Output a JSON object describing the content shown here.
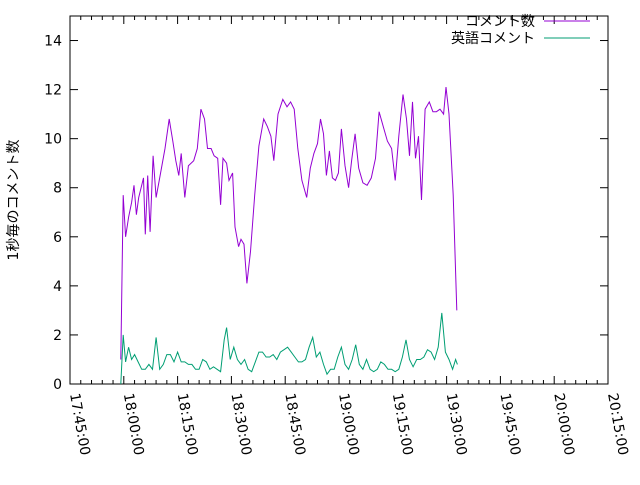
{
  "chart_data": {
    "type": "line",
    "title": "",
    "xlabel": "",
    "ylabel": "1秒毎のコメント数",
    "xlim": [
      "17:45:00",
      "20:15:00"
    ],
    "ylim": [
      0,
      15
    ],
    "grid": false,
    "legend_position": "top-right",
    "x_ticks": [
      "17:45:00",
      "18:00:00",
      "18:15:00",
      "18:30:00",
      "18:45:00",
      "19:00:00",
      "19:15:00",
      "19:30:00",
      "19:45:00",
      "20:00:00",
      "20:15:00"
    ],
    "y_ticks": [
      0,
      2,
      4,
      6,
      8,
      10,
      12,
      14
    ],
    "series": [
      {
        "name": "コメント数",
        "color": "#9400d3",
        "points": [
          [
            "17:59:10",
            1.0
          ],
          [
            "17:59:50",
            7.7
          ],
          [
            "18:00:30",
            6.0
          ],
          [
            "18:01:20",
            6.8
          ],
          [
            "18:02:10",
            7.4
          ],
          [
            "18:02:50",
            8.1
          ],
          [
            "18:03:30",
            6.9
          ],
          [
            "18:04:10",
            7.6
          ],
          [
            "18:04:50",
            8.0
          ],
          [
            "18:05:30",
            8.4
          ],
          [
            "18:06:00",
            6.1
          ],
          [
            "18:06:40",
            8.5
          ],
          [
            "18:07:20",
            6.2
          ],
          [
            "18:08:10",
            9.3
          ],
          [
            "18:09:00",
            7.6
          ],
          [
            "18:10:00",
            8.4
          ],
          [
            "18:11:30",
            9.6
          ],
          [
            "18:12:40",
            10.8
          ],
          [
            "18:13:40",
            9.9
          ],
          [
            "18:14:30",
            9.1
          ],
          [
            "18:15:20",
            8.5
          ],
          [
            "18:16:00",
            9.4
          ],
          [
            "18:17:00",
            7.6
          ],
          [
            "18:18:00",
            8.9
          ],
          [
            "18:19:30",
            9.1
          ],
          [
            "18:20:30",
            9.6
          ],
          [
            "18:21:30",
            11.2
          ],
          [
            "18:22:30",
            10.8
          ],
          [
            "18:23:20",
            9.6
          ],
          [
            "18:24:20",
            9.6
          ],
          [
            "18:25:10",
            9.3
          ],
          [
            "18:26:10",
            9.2
          ],
          [
            "18:27:00",
            7.3
          ],
          [
            "18:27:40",
            9.2
          ],
          [
            "18:28:40",
            9.0
          ],
          [
            "18:29:20",
            8.3
          ],
          [
            "18:30:20",
            8.6
          ],
          [
            "18:31:00",
            6.4
          ],
          [
            "18:32:00",
            5.6
          ],
          [
            "18:32:40",
            5.9
          ],
          [
            "18:33:30",
            5.7
          ],
          [
            "18:34:20",
            4.1
          ],
          [
            "18:35:20",
            5.4
          ],
          [
            "18:36:30",
            7.7
          ],
          [
            "18:37:40",
            9.7
          ],
          [
            "18:39:00",
            10.8
          ],
          [
            "18:40:00",
            10.5
          ],
          [
            "18:41:00",
            10.1
          ],
          [
            "18:41:50",
            9.1
          ],
          [
            "18:43:00",
            11.0
          ],
          [
            "18:44:20",
            11.6
          ],
          [
            "18:45:30",
            11.3
          ],
          [
            "18:46:30",
            11.5
          ],
          [
            "18:47:30",
            11.2
          ],
          [
            "18:48:30",
            9.6
          ],
          [
            "18:49:40",
            8.3
          ],
          [
            "18:51:00",
            7.6
          ],
          [
            "18:52:00",
            8.8
          ],
          [
            "18:53:00",
            9.4
          ],
          [
            "18:54:00",
            9.8
          ],
          [
            "18:54:50",
            10.8
          ],
          [
            "18:55:40",
            10.2
          ],
          [
            "18:56:30",
            8.5
          ],
          [
            "18:57:20",
            9.5
          ],
          [
            "18:58:10",
            8.4
          ],
          [
            "18:59:00",
            8.3
          ],
          [
            "18:59:50",
            8.6
          ],
          [
            "19:00:40",
            10.4
          ],
          [
            "19:01:40",
            8.9
          ],
          [
            "19:02:40",
            8.0
          ],
          [
            "19:03:30",
            9.1
          ],
          [
            "19:04:30",
            10.2
          ],
          [
            "19:05:30",
            8.8
          ],
          [
            "19:06:40",
            8.2
          ],
          [
            "19:07:50",
            8.1
          ],
          [
            "19:09:00",
            8.4
          ],
          [
            "19:10:10",
            9.2
          ],
          [
            "19:11:10",
            11.1
          ],
          [
            "19:12:20",
            10.5
          ],
          [
            "19:13:30",
            9.9
          ],
          [
            "19:14:40",
            9.6
          ],
          [
            "19:15:40",
            8.3
          ],
          [
            "19:16:40",
            10.1
          ],
          [
            "19:17:50",
            11.8
          ],
          [
            "19:18:50",
            10.8
          ],
          [
            "19:19:40",
            9.3
          ],
          [
            "19:20:30",
            11.5
          ],
          [
            "19:21:20",
            9.2
          ],
          [
            "19:22:10",
            10.1
          ],
          [
            "19:23:00",
            7.5
          ],
          [
            "19:24:00",
            11.2
          ],
          [
            "19:25:10",
            11.5
          ],
          [
            "19:26:10",
            11.1
          ],
          [
            "19:27:10",
            11.1
          ],
          [
            "19:28:10",
            11.2
          ],
          [
            "19:29:10",
            11.0
          ],
          [
            "19:29:50",
            12.1
          ],
          [
            "19:30:40",
            11.0
          ],
          [
            "19:31:50",
            7.7
          ],
          [
            "19:32:50",
            3.0
          ]
        ]
      },
      {
        "name": "英語コメント",
        "color": "#009e73",
        "points": [
          [
            "17:59:10",
            0.0
          ],
          [
            "17:59:50",
            2.0
          ],
          [
            "18:00:30",
            0.9
          ],
          [
            "18:01:20",
            1.5
          ],
          [
            "18:02:10",
            1.0
          ],
          [
            "18:03:00",
            1.2
          ],
          [
            "18:04:00",
            0.9
          ],
          [
            "18:05:00",
            0.6
          ],
          [
            "18:06:00",
            0.6
          ],
          [
            "18:07:00",
            0.8
          ],
          [
            "18:08:00",
            0.6
          ],
          [
            "18:09:00",
            1.9
          ],
          [
            "18:10:00",
            0.6
          ],
          [
            "18:11:00",
            0.8
          ],
          [
            "18:12:00",
            1.2
          ],
          [
            "18:13:00",
            1.2
          ],
          [
            "18:14:00",
            0.9
          ],
          [
            "18:15:00",
            1.3
          ],
          [
            "18:16:00",
            0.9
          ],
          [
            "18:17:00",
            0.9
          ],
          [
            "18:18:00",
            0.8
          ],
          [
            "18:19:00",
            0.8
          ],
          [
            "18:20:00",
            0.6
          ],
          [
            "18:21:00",
            0.6
          ],
          [
            "18:22:00",
            1.0
          ],
          [
            "18:23:00",
            0.9
          ],
          [
            "18:24:00",
            0.6
          ],
          [
            "18:25:00",
            0.7
          ],
          [
            "18:26:00",
            0.6
          ],
          [
            "18:27:00",
            0.5
          ],
          [
            "18:28:00",
            1.8
          ],
          [
            "18:28:40",
            2.3
          ],
          [
            "18:29:40",
            1.0
          ],
          [
            "18:30:40",
            1.5
          ],
          [
            "18:31:40",
            1.0
          ],
          [
            "18:32:40",
            0.8
          ],
          [
            "18:33:40",
            1.0
          ],
          [
            "18:34:40",
            0.6
          ],
          [
            "18:35:40",
            0.5
          ],
          [
            "18:36:40",
            0.9
          ],
          [
            "18:37:40",
            1.3
          ],
          [
            "18:38:40",
            1.3
          ],
          [
            "18:39:40",
            1.1
          ],
          [
            "18:40:40",
            1.1
          ],
          [
            "18:41:40",
            1.2
          ],
          [
            "18:42:40",
            1.0
          ],
          [
            "18:43:40",
            1.3
          ],
          [
            "18:44:40",
            1.4
          ],
          [
            "18:45:40",
            1.5
          ],
          [
            "18:46:40",
            1.3
          ],
          [
            "18:47:40",
            1.1
          ],
          [
            "18:48:40",
            0.9
          ],
          [
            "18:49:40",
            0.9
          ],
          [
            "18:50:40",
            1.0
          ],
          [
            "18:51:40",
            1.5
          ],
          [
            "18:52:40",
            1.9
          ],
          [
            "18:53:40",
            1.1
          ],
          [
            "18:54:40",
            1.3
          ],
          [
            "18:55:40",
            0.8
          ],
          [
            "18:56:40",
            0.4
          ],
          [
            "18:57:40",
            0.6
          ],
          [
            "18:58:40",
            0.6
          ],
          [
            "18:59:40",
            1.1
          ],
          [
            "19:00:40",
            1.5
          ],
          [
            "19:01:40",
            0.8
          ],
          [
            "19:02:40",
            0.6
          ],
          [
            "19:03:40",
            1.0
          ],
          [
            "19:04:40",
            1.6
          ],
          [
            "19:05:40",
            0.8
          ],
          [
            "19:06:40",
            0.6
          ],
          [
            "19:07:40",
            1.0
          ],
          [
            "19:08:40",
            0.6
          ],
          [
            "19:09:40",
            0.5
          ],
          [
            "19:10:40",
            0.6
          ],
          [
            "19:11:40",
            0.9
          ],
          [
            "19:12:40",
            0.8
          ],
          [
            "19:13:40",
            0.6
          ],
          [
            "19:14:40",
            0.6
          ],
          [
            "19:15:40",
            0.5
          ],
          [
            "19:16:40",
            0.6
          ],
          [
            "19:17:40",
            1.1
          ],
          [
            "19:18:40",
            1.8
          ],
          [
            "19:19:40",
            1.0
          ],
          [
            "19:20:40",
            0.7
          ],
          [
            "19:21:40",
            1.0
          ],
          [
            "19:22:40",
            1.0
          ],
          [
            "19:23:40",
            1.1
          ],
          [
            "19:24:40",
            1.4
          ],
          [
            "19:25:40",
            1.3
          ],
          [
            "19:26:40",
            1.0
          ],
          [
            "19:27:40",
            1.5
          ],
          [
            "19:28:40",
            2.9
          ],
          [
            "19:29:40",
            1.3
          ],
          [
            "19:30:40",
            1.0
          ],
          [
            "19:31:40",
            0.6
          ],
          [
            "19:32:30",
            1.0
          ],
          [
            "19:33:00",
            0.8
          ]
        ]
      }
    ]
  }
}
